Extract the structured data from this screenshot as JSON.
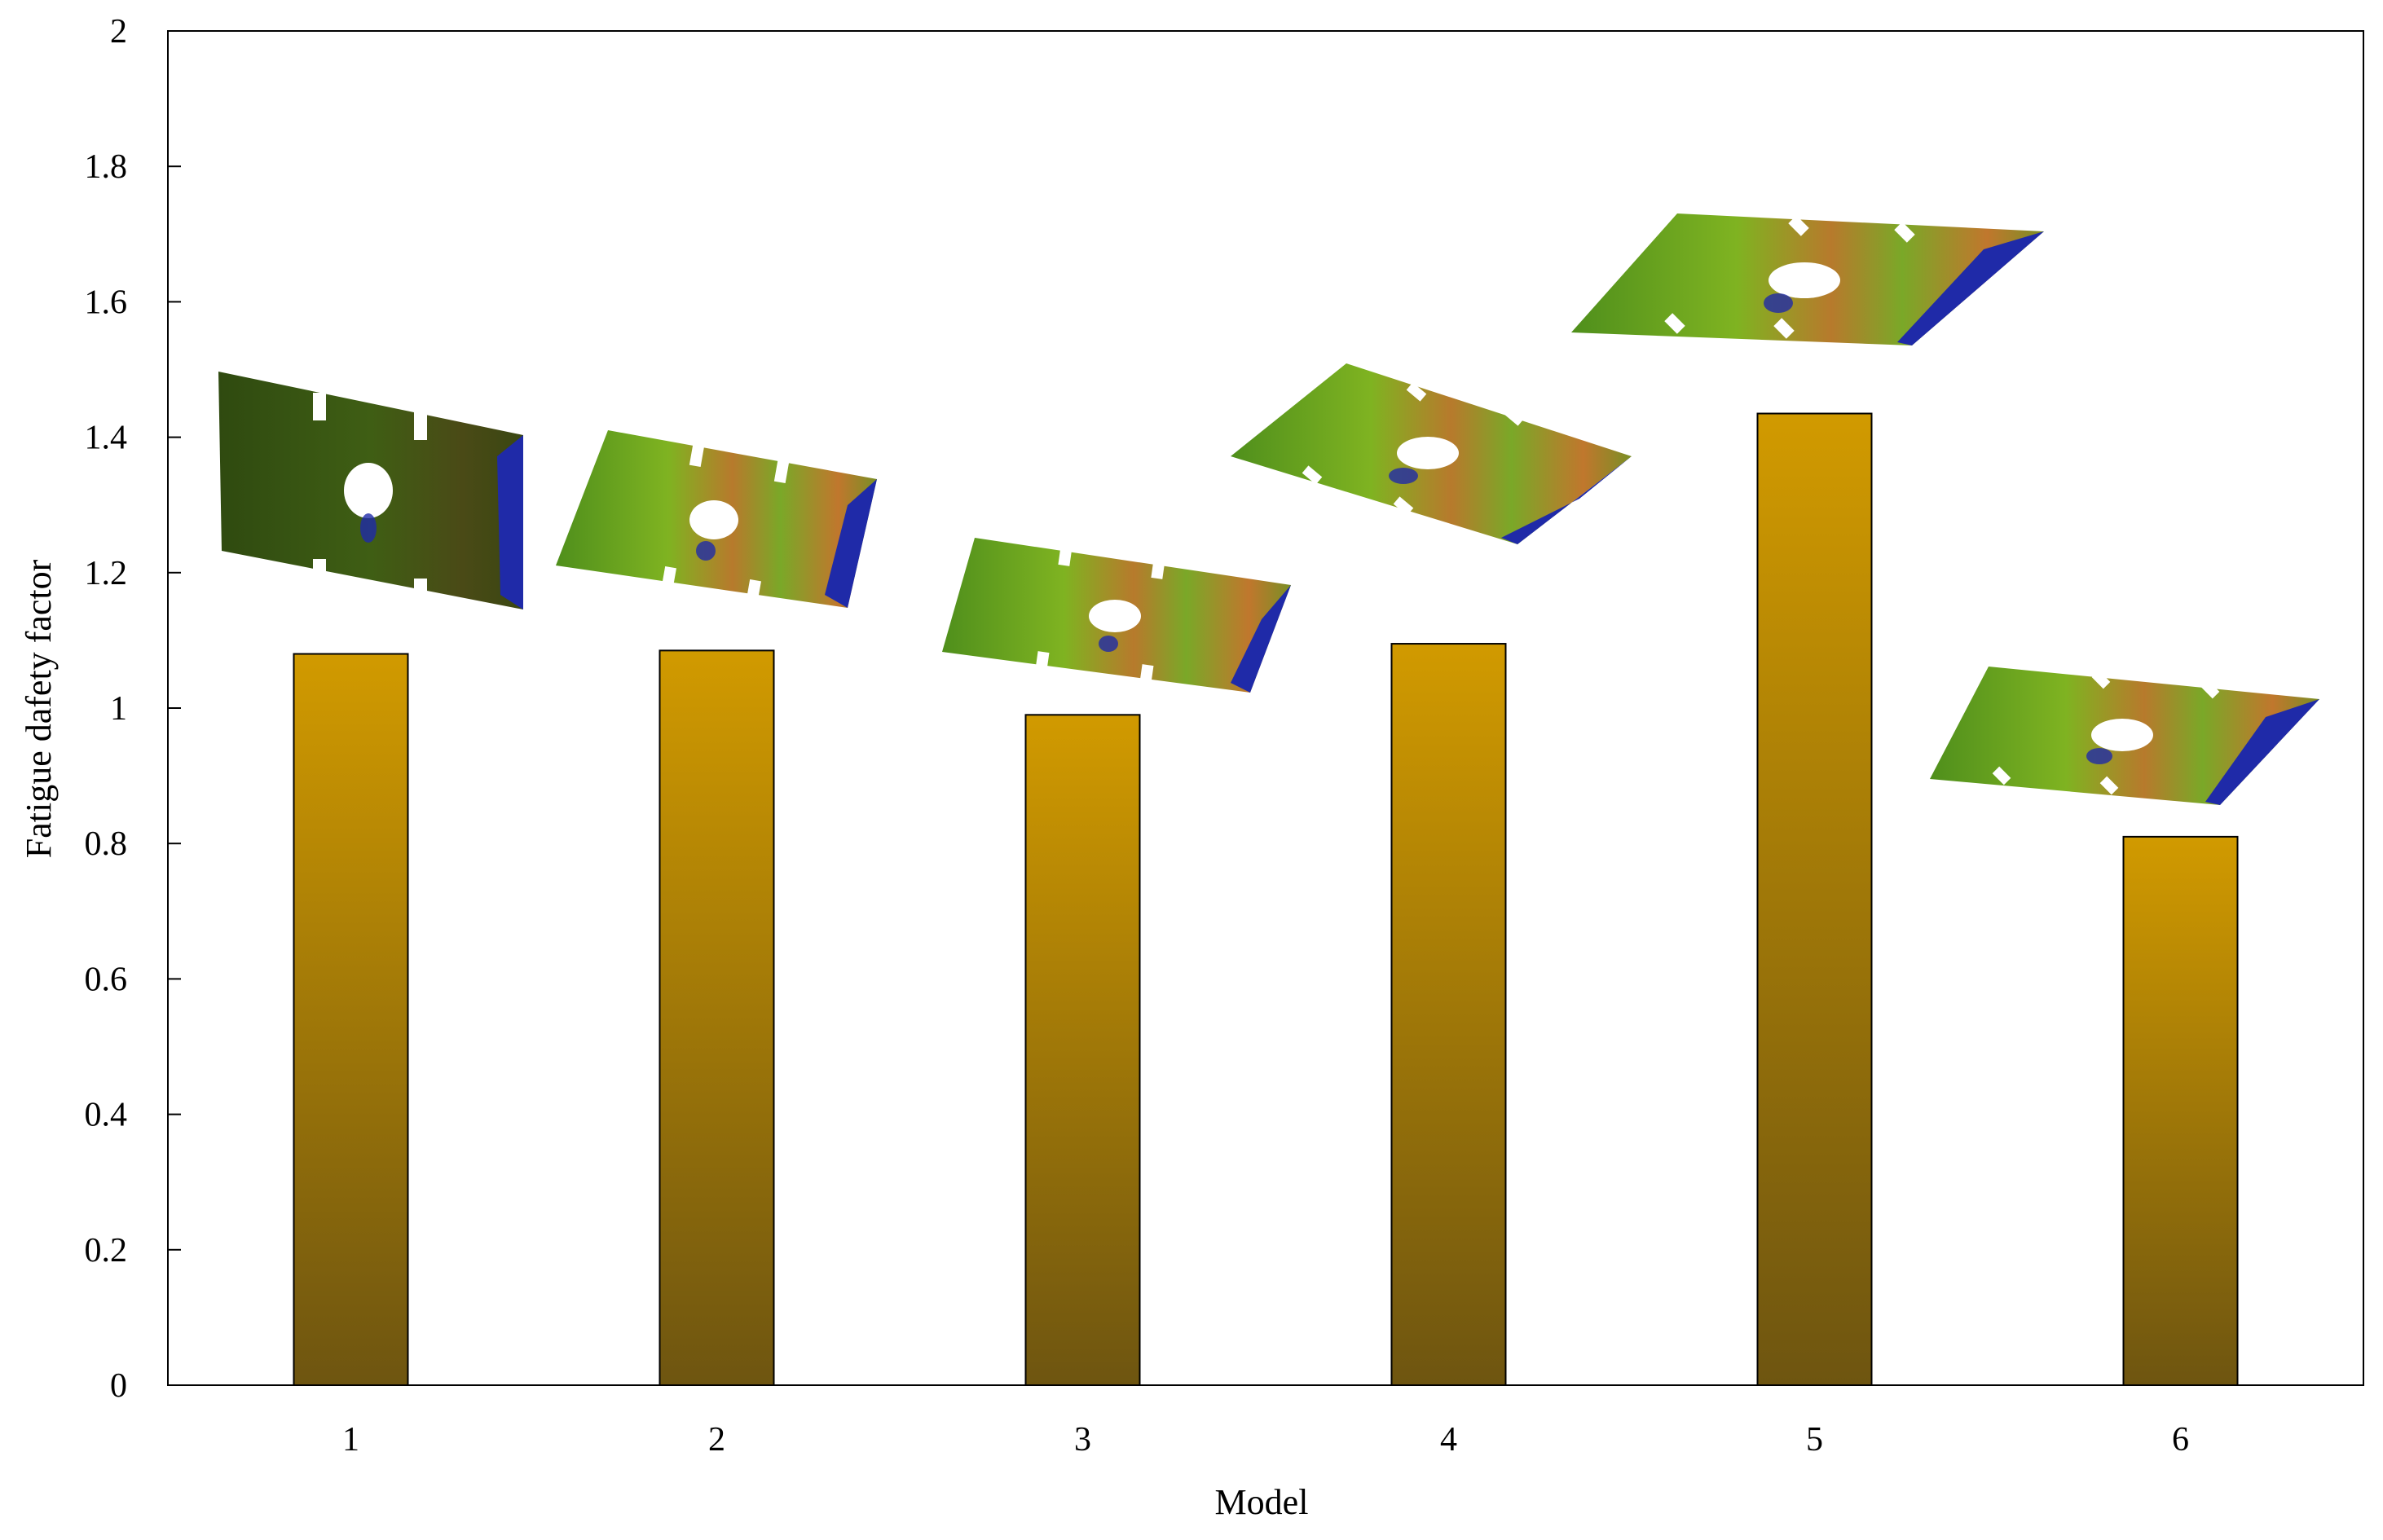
{
  "chart_data": {
    "type": "bar",
    "title": "",
    "xlabel": "Model",
    "ylabel": "Fatigue dafety  factor",
    "categories": [
      "1",
      "2",
      "3",
      "4",
      "5",
      "6"
    ],
    "values": [
      1.08,
      1.085,
      0.99,
      1.095,
      1.435,
      0.81
    ],
    "ylim": [
      0,
      2
    ],
    "yticks": [
      "0",
      "0.2",
      "0.4",
      "0.6",
      "0.8",
      "1",
      "1.2",
      "1.4",
      "1.6",
      "1.8",
      "2"
    ],
    "grid": false,
    "legend": "none",
    "bar_gradient": [
      "#d19a00",
      "#6e5510"
    ],
    "inset_images": [
      "fatigue-contour-plate-model-1",
      "fatigue-contour-plate-model-2",
      "fatigue-contour-plate-model-3",
      "fatigue-contour-plate-model-4",
      "fatigue-contour-plate-model-5",
      "fatigue-contour-plate-model-6"
    ]
  }
}
